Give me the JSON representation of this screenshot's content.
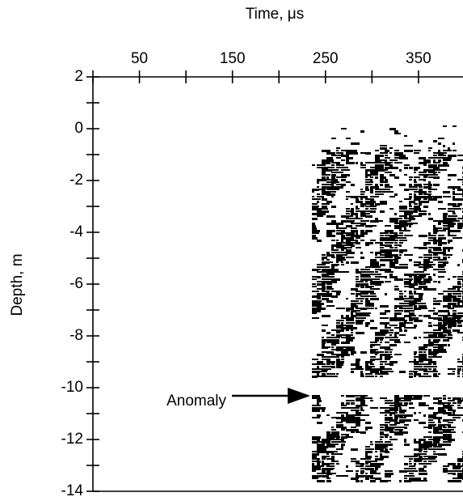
{
  "chart_data": {
    "type": "image",
    "x_label": "Time, μs",
    "y_label": "Depth, m",
    "xlim": [
      0,
      397
    ],
    "xticks": [
      50,
      150,
      250,
      350
    ],
    "xminor_ticks": [
      0,
      100,
      200,
      300
    ],
    "ylim": [
      -14,
      2
    ],
    "yticks": [
      2,
      0,
      -2,
      -4,
      -6,
      -8,
      -10,
      -12,
      -14
    ],
    "yminor_ticks": [
      1,
      -1,
      -3,
      -5,
      -7,
      -9,
      -11,
      -13
    ],
    "annotation": "Anomaly"
  }
}
